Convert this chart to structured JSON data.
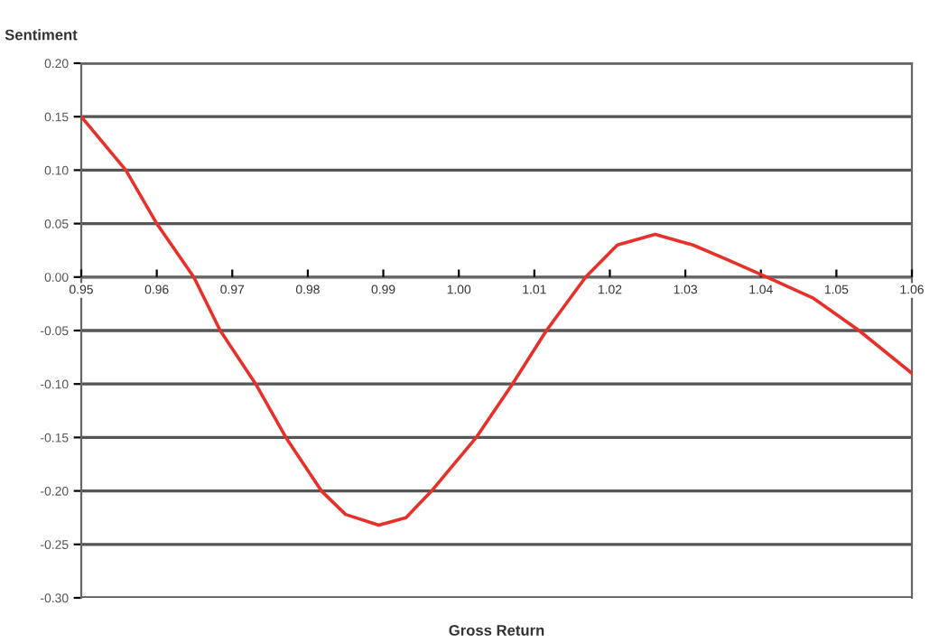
{
  "chart_data": {
    "type": "line",
    "xlabel": "Gross Return",
    "ylabel": "Sentiment",
    "x": [
      0.95,
      0.9559,
      0.96,
      0.9649,
      0.9684,
      0.9731,
      0.9771,
      0.9818,
      0.985,
      0.9894,
      0.993,
      0.9964,
      1.0023,
      1.0071,
      1.0116,
      1.0168,
      1.021,
      1.026,
      1.031,
      1.036,
      1.0408,
      1.047,
      1.053,
      1.06
    ],
    "series": [
      {
        "color": "#e8302a",
        "values": [
          0.15,
          0.1,
          0.05,
          0.0,
          -0.05,
          -0.1,
          -0.15,
          -0.2,
          -0.222,
          -0.232,
          -0.225,
          -0.2,
          -0.15,
          -0.1,
          -0.05,
          0.0,
          0.03,
          0.04,
          0.03,
          0.015,
          0.0,
          -0.02,
          -0.05,
          -0.09
        ]
      }
    ],
    "xlim": [
      0.95,
      1.06
    ],
    "xticks": [
      {
        "value": 0.95,
        "label": "0.95"
      },
      {
        "value": 0.96,
        "label": "0.96"
      },
      {
        "value": 0.97,
        "label": "0.97"
      },
      {
        "value": 0.98,
        "label": "0.98"
      },
      {
        "value": 0.99,
        "label": "0.99"
      },
      {
        "value": 1.0,
        "label": "1.00"
      },
      {
        "value": 1.01,
        "label": "1.01"
      },
      {
        "value": 1.02,
        "label": "1.02"
      },
      {
        "value": 1.03,
        "label": "1.03"
      },
      {
        "value": 1.04,
        "label": "1.04"
      },
      {
        "value": 1.05,
        "label": "1.05"
      },
      {
        "value": 1.06,
        "label": "1.06"
      }
    ],
    "ylim": [
      -0.3,
      0.2
    ],
    "yticks": [
      {
        "value": 0.2,
        "label": "0.20"
      },
      {
        "value": 0.15,
        "label": "0.15"
      },
      {
        "value": 0.1,
        "label": "0.10"
      },
      {
        "value": 0.05,
        "label": "0.05"
      },
      {
        "value": 0.0,
        "label": "0.00"
      },
      {
        "value": -0.05,
        "label": "-0.05"
      },
      {
        "value": -0.1,
        "label": "-0.10"
      },
      {
        "value": -0.15,
        "label": "-0.15"
      },
      {
        "value": -0.2,
        "label": "-0.20"
      },
      {
        "value": -0.25,
        "label": "-0.25"
      },
      {
        "value": -0.3,
        "label": "-0.30"
      }
    ],
    "grid": "y",
    "marker": "none",
    "line_style": "solid",
    "legend": false
  }
}
